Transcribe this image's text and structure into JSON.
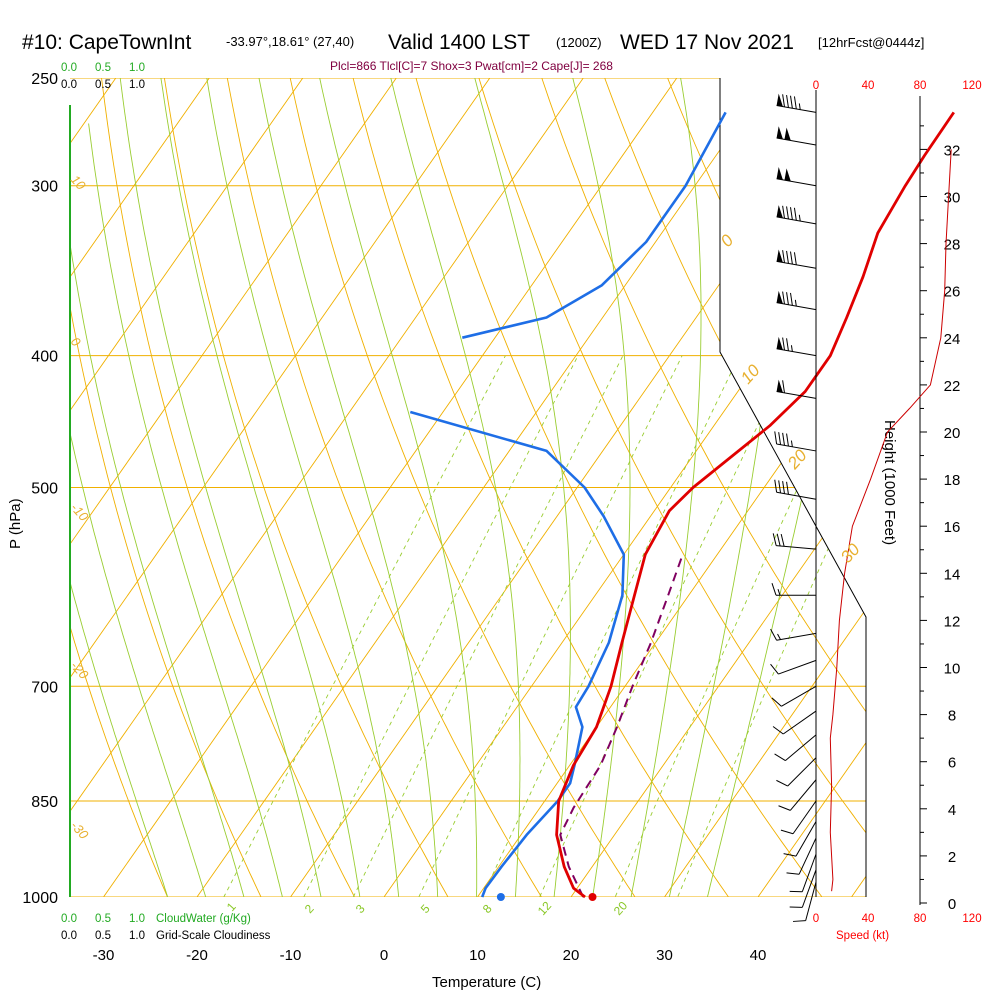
{
  "header": {
    "station": "#10: CapeTownInt",
    "coords": "-33.97°,18.61° (27,40)",
    "valid": "Valid 1400 LST",
    "zulu": "(1200Z)",
    "date": "WED 17 Nov 2021",
    "forecast": "[12hrFcst@0444z]",
    "params": "Plcl=866 Tlcl[C]=7 Shox=3 Pwat[cm]=2 Cape[J]= 268"
  },
  "colors": {
    "temperature": "#e00000",
    "dewpoint": "#1e6ee6",
    "parcel": "#800060",
    "isobar": "#f0b000",
    "isotherm": "#f0b000",
    "dry_adiabat": "#f0b000",
    "moist_adiabat": "#9acd32",
    "mixing_ratio": "#9acd32",
    "cloud_water": "#22aa22",
    "wind_speed": "#cc0000"
  },
  "left_scale": {
    "cloud_water_top": [
      "0.0",
      "0.5",
      "1.0"
    ],
    "cloudiness_top": [
      "0.0",
      "0.5",
      "1.0"
    ],
    "cloud_water_bottom": [
      "0.0",
      "0.5",
      "1.0"
    ],
    "cloud_water_label": "CloudWater (g/Kg)",
    "cloudiness_bottom": [
      "0.0",
      "0.5",
      "1.0"
    ],
    "cloudiness_label": "Grid-Scale Cloudiness"
  },
  "chart_data": {
    "type": "skew-t",
    "title": "#10: CapeTownInt -33.97°,18.61° (27,40)  Valid 1400 LST (1200Z) WED 17 Nov 2021 [12hrFcst@0444z]",
    "xlabel": "Temperature (C)",
    "ylabel": "P (hPa)",
    "y2label": "Height (1000 Feet)",
    "pressure_ticks": [
      250,
      300,
      400,
      500,
      700,
      850,
      1000
    ],
    "temperature_ticks": [
      -30,
      -20,
      -10,
      0,
      10,
      20,
      30,
      40
    ],
    "height_ticks": [
      0,
      2,
      4,
      6,
      8,
      10,
      12,
      14,
      16,
      18,
      20,
      22,
      24,
      26,
      28,
      30,
      32
    ],
    "height_range": [
      0,
      33
    ],
    "wind_speed_ticks": [
      0,
      40,
      80,
      120
    ],
    "wind_speed_label": "Speed (kt)",
    "dry_adiabat_labels": [
      "10",
      "0",
      "-10",
      "-20",
      "-30",
      "0",
      "10",
      "20",
      "30"
    ],
    "mixing_ratio_labels": [
      "1",
      "2",
      "3",
      "5",
      "8",
      "12",
      "20"
    ],
    "temperature_profile": [
      {
        "p": 1000,
        "t": 21.5
      },
      {
        "p": 985,
        "t": 19.6
      },
      {
        "p": 950,
        "t": 17.0
      },
      {
        "p": 900,
        "t": 13.8
      },
      {
        "p": 850,
        "t": 11.5
      },
      {
        "p": 800,
        "t": 10.4
      },
      {
        "p": 750,
        "t": 10.0
      },
      {
        "p": 700,
        "t": 8.5
      },
      {
        "p": 650,
        "t": 6.4
      },
      {
        "p": 600,
        "t": 4.2
      },
      {
        "p": 560,
        "t": 2.3
      },
      {
        "p": 520,
        "t": 1.6
      },
      {
        "p": 500,
        "t": 2.4
      },
      {
        "p": 450,
        "t": 6.0
      },
      {
        "p": 425,
        "t": 7.2
      },
      {
        "p": 400,
        "t": 7.2
      },
      {
        "p": 375,
        "t": 6.1
      },
      {
        "p": 350,
        "t": 4.8
      },
      {
        "p": 325,
        "t": 3.1
      },
      {
        "p": 300,
        "t": 2.5
      },
      {
        "p": 285,
        "t": 2.3
      },
      {
        "p": 265,
        "t": 2.2
      }
    ],
    "surface_temperature": 22.3,
    "dewpoint_profile": [
      {
        "p": 1000,
        "td": 10.5
      },
      {
        "p": 985,
        "td": 10.2
      },
      {
        "p": 950,
        "td": 10.3
      },
      {
        "p": 900,
        "td": 10.6
      },
      {
        "p": 850,
        "td": 11.4
      },
      {
        "p": 825,
        "td": 11.4
      },
      {
        "p": 800,
        "td": 10.5
      },
      {
        "p": 750,
        "td": 8.5
      },
      {
        "p": 725,
        "td": 6.3
      },
      {
        "p": 700,
        "td": 6.1
      },
      {
        "p": 650,
        "td": 5.0
      },
      {
        "p": 600,
        "td": 2.9
      },
      {
        "p": 560,
        "td": 0.0
      },
      {
        "p": 525,
        "td": -5.0
      },
      {
        "p": 500,
        "td": -9.2
      },
      {
        "p": 470,
        "td": -16.0
      },
      {
        "p": 440,
        "td": -33.5
      }
    ],
    "dewpoint_upper_profile": [
      {
        "p": 388,
        "td": -33.5
      },
      {
        "p": 375,
        "td": -26.0
      },
      {
        "p": 355,
        "td": -22.5
      },
      {
        "p": 330,
        "td": -21.0
      },
      {
        "p": 300,
        "td": -21.0
      },
      {
        "p": 265,
        "td": -22.2
      }
    ],
    "surface_dewpoint": 12.5,
    "parcel_profile": [
      {
        "p": 1000,
        "t": 21.3
      },
      {
        "p": 980,
        "t": 19.8
      },
      {
        "p": 950,
        "t": 17.5
      },
      {
        "p": 900,
        "t": 14.2
      },
      {
        "p": 860,
        "t": 13.6
      },
      {
        "p": 800,
        "t": 13.3
      },
      {
        "p": 750,
        "t": 12.2
      },
      {
        "p": 700,
        "t": 10.8
      },
      {
        "p": 650,
        "t": 9.5
      },
      {
        "p": 600,
        "t": 7.8
      },
      {
        "p": 560,
        "t": 6.3
      }
    ],
    "wind_speed_profile": [
      {
        "h": 0.5,
        "v": 12
      },
      {
        "h": 1,
        "v": 13
      },
      {
        "h": 3,
        "v": 11
      },
      {
        "h": 5,
        "v": 12
      },
      {
        "h": 7,
        "v": 11
      },
      {
        "h": 8,
        "v": 13
      },
      {
        "h": 10,
        "v": 16
      },
      {
        "h": 12,
        "v": 18
      },
      {
        "h": 14,
        "v": 22
      },
      {
        "h": 16,
        "v": 28
      },
      {
        "h": 18,
        "v": 42
      },
      {
        "h": 20,
        "v": 55
      },
      {
        "h": 21,
        "v": 72
      },
      {
        "h": 22,
        "v": 88
      },
      {
        "h": 24,
        "v": 96
      },
      {
        "h": 26,
        "v": 99
      },
      {
        "h": 28,
        "v": 100
      },
      {
        "h": 30,
        "v": 102
      },
      {
        "h": 32,
        "v": 104
      }
    ],
    "wind_barbs": [
      {
        "p": 265,
        "dir": 280,
        "spd": 95
      },
      {
        "p": 280,
        "dir": 280,
        "spd": 100
      },
      {
        "p": 300,
        "dir": 280,
        "spd": 100
      },
      {
        "p": 320,
        "dir": 280,
        "spd": 95
      },
      {
        "p": 345,
        "dir": 280,
        "spd": 90
      },
      {
        "p": 370,
        "dir": 280,
        "spd": 85
      },
      {
        "p": 400,
        "dir": 280,
        "spd": 75
      },
      {
        "p": 430,
        "dir": 280,
        "spd": 60
      },
      {
        "p": 470,
        "dir": 280,
        "spd": 45
      },
      {
        "p": 510,
        "dir": 280,
        "spd": 40
      },
      {
        "p": 555,
        "dir": 275,
        "spd": 30
      },
      {
        "p": 600,
        "dir": 270,
        "spd": 15
      },
      {
        "p": 640,
        "dir": 260,
        "spd": 15
      },
      {
        "p": 670,
        "dir": 250,
        "spd": 10
      },
      {
        "p": 700,
        "dir": 240,
        "spd": 10
      },
      {
        "p": 730,
        "dir": 235,
        "spd": 10
      },
      {
        "p": 760,
        "dir": 230,
        "spd": 10
      },
      {
        "p": 790,
        "dir": 225,
        "spd": 10
      },
      {
        "p": 820,
        "dir": 220,
        "spd": 10
      },
      {
        "p": 850,
        "dir": 215,
        "spd": 10
      },
      {
        "p": 880,
        "dir": 210,
        "spd": 10
      },
      {
        "p": 905,
        "dir": 205,
        "spd": 10
      },
      {
        "p": 930,
        "dir": 200,
        "spd": 10
      },
      {
        "p": 955,
        "dir": 200,
        "spd": 10
      },
      {
        "p": 975,
        "dir": 195,
        "spd": 10
      }
    ]
  }
}
